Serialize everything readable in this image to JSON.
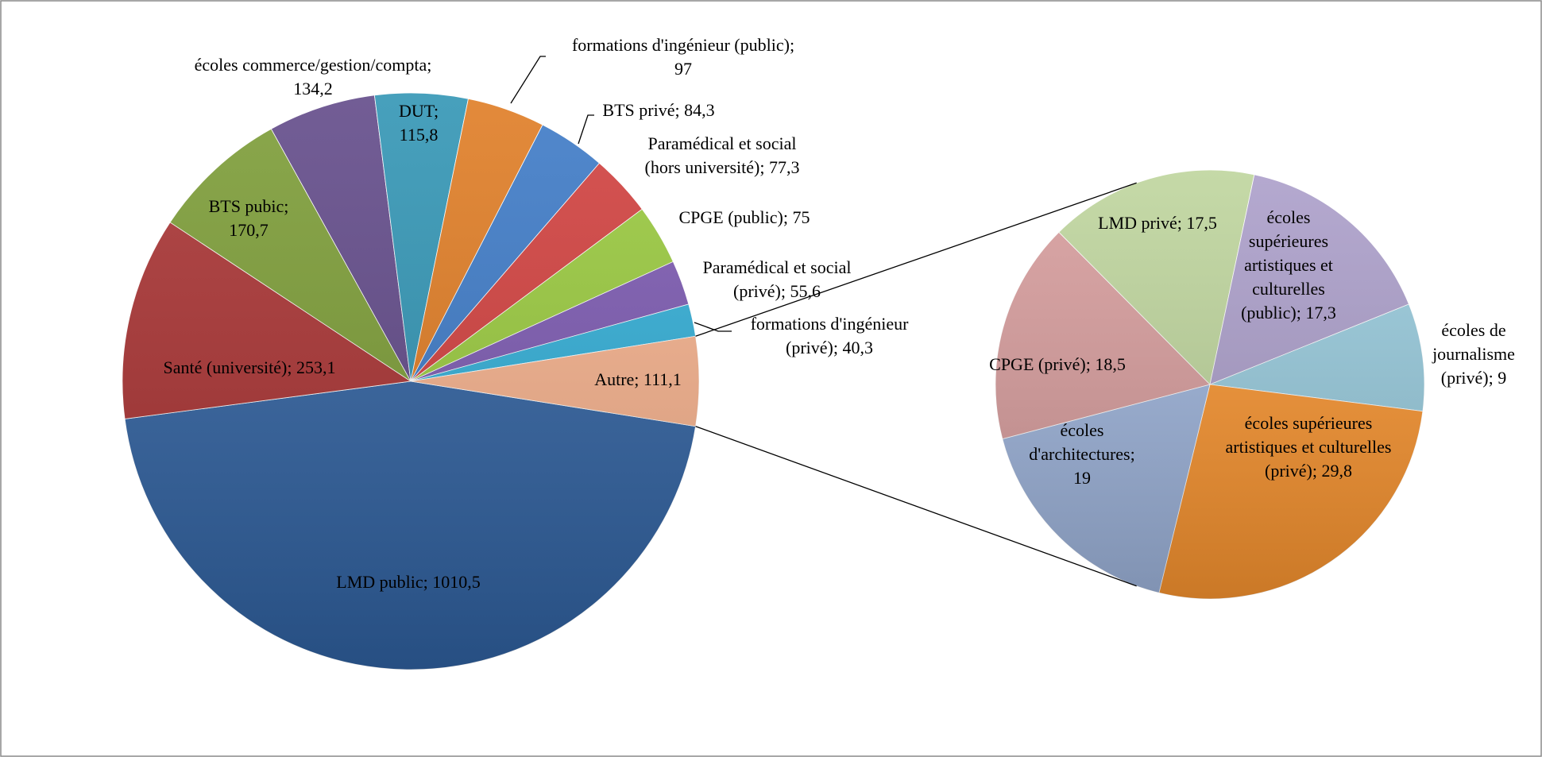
{
  "chart_data": {
    "type": "pie-of-pie",
    "categories": [
      "LMD public;",
      "Santé (université);",
      "BTS pubic;",
      "écoles commerce/gestion/compta;",
      "DUT;",
      "formations d'ingénieur (public);",
      "BTS privé;",
      "Paramédical et social (hors université);",
      "CPGE (public);",
      "Paramédical et social (privé);",
      "formations d'ingénieur (privé);",
      "Autre;"
    ],
    "values": [
      1010.5,
      253.1,
      170.7,
      134.2,
      115.8,
      97,
      84.3,
      77.3,
      75,
      55.6,
      40.3,
      111.1
    ],
    "value_labels": [
      "1010,5",
      "253,1",
      "170,7",
      "134,2",
      "115,8",
      "97",
      "84,3",
      "77,3",
      "75",
      "55,6",
      "40,3",
      "111,1"
    ],
    "colors": [
      "#2f609f",
      "#a83030",
      "#7a9b33",
      "#5f4787",
      "#2e93b3",
      "#df7a20",
      "#3a78c6",
      "#d13d3b",
      "#98c93b",
      "#7a57b0",
      "#2fadd6",
      "#f5b08b"
    ],
    "secondary": {
      "categories": [
        "écoles de journalisme (privé);",
        "écoles supérieures artistiques et culturelles (privé);",
        "écoles d'architectures;",
        "CPGE (privé);",
        "LMD privé;",
        "écoles supérieures artistiques et culturelles (public);"
      ],
      "values": [
        9,
        29.8,
        19,
        18.5,
        17.5,
        17.3
      ],
      "value_labels": [
        "9",
        "29,8",
        "19",
        "18,5",
        "17,5",
        "17,3"
      ],
      "colors": [
        "#96c9db",
        "#f7932f",
        "#9cb2d9",
        "#d69b9b",
        "#bdd49b",
        "#aa9dc9"
      ]
    }
  }
}
